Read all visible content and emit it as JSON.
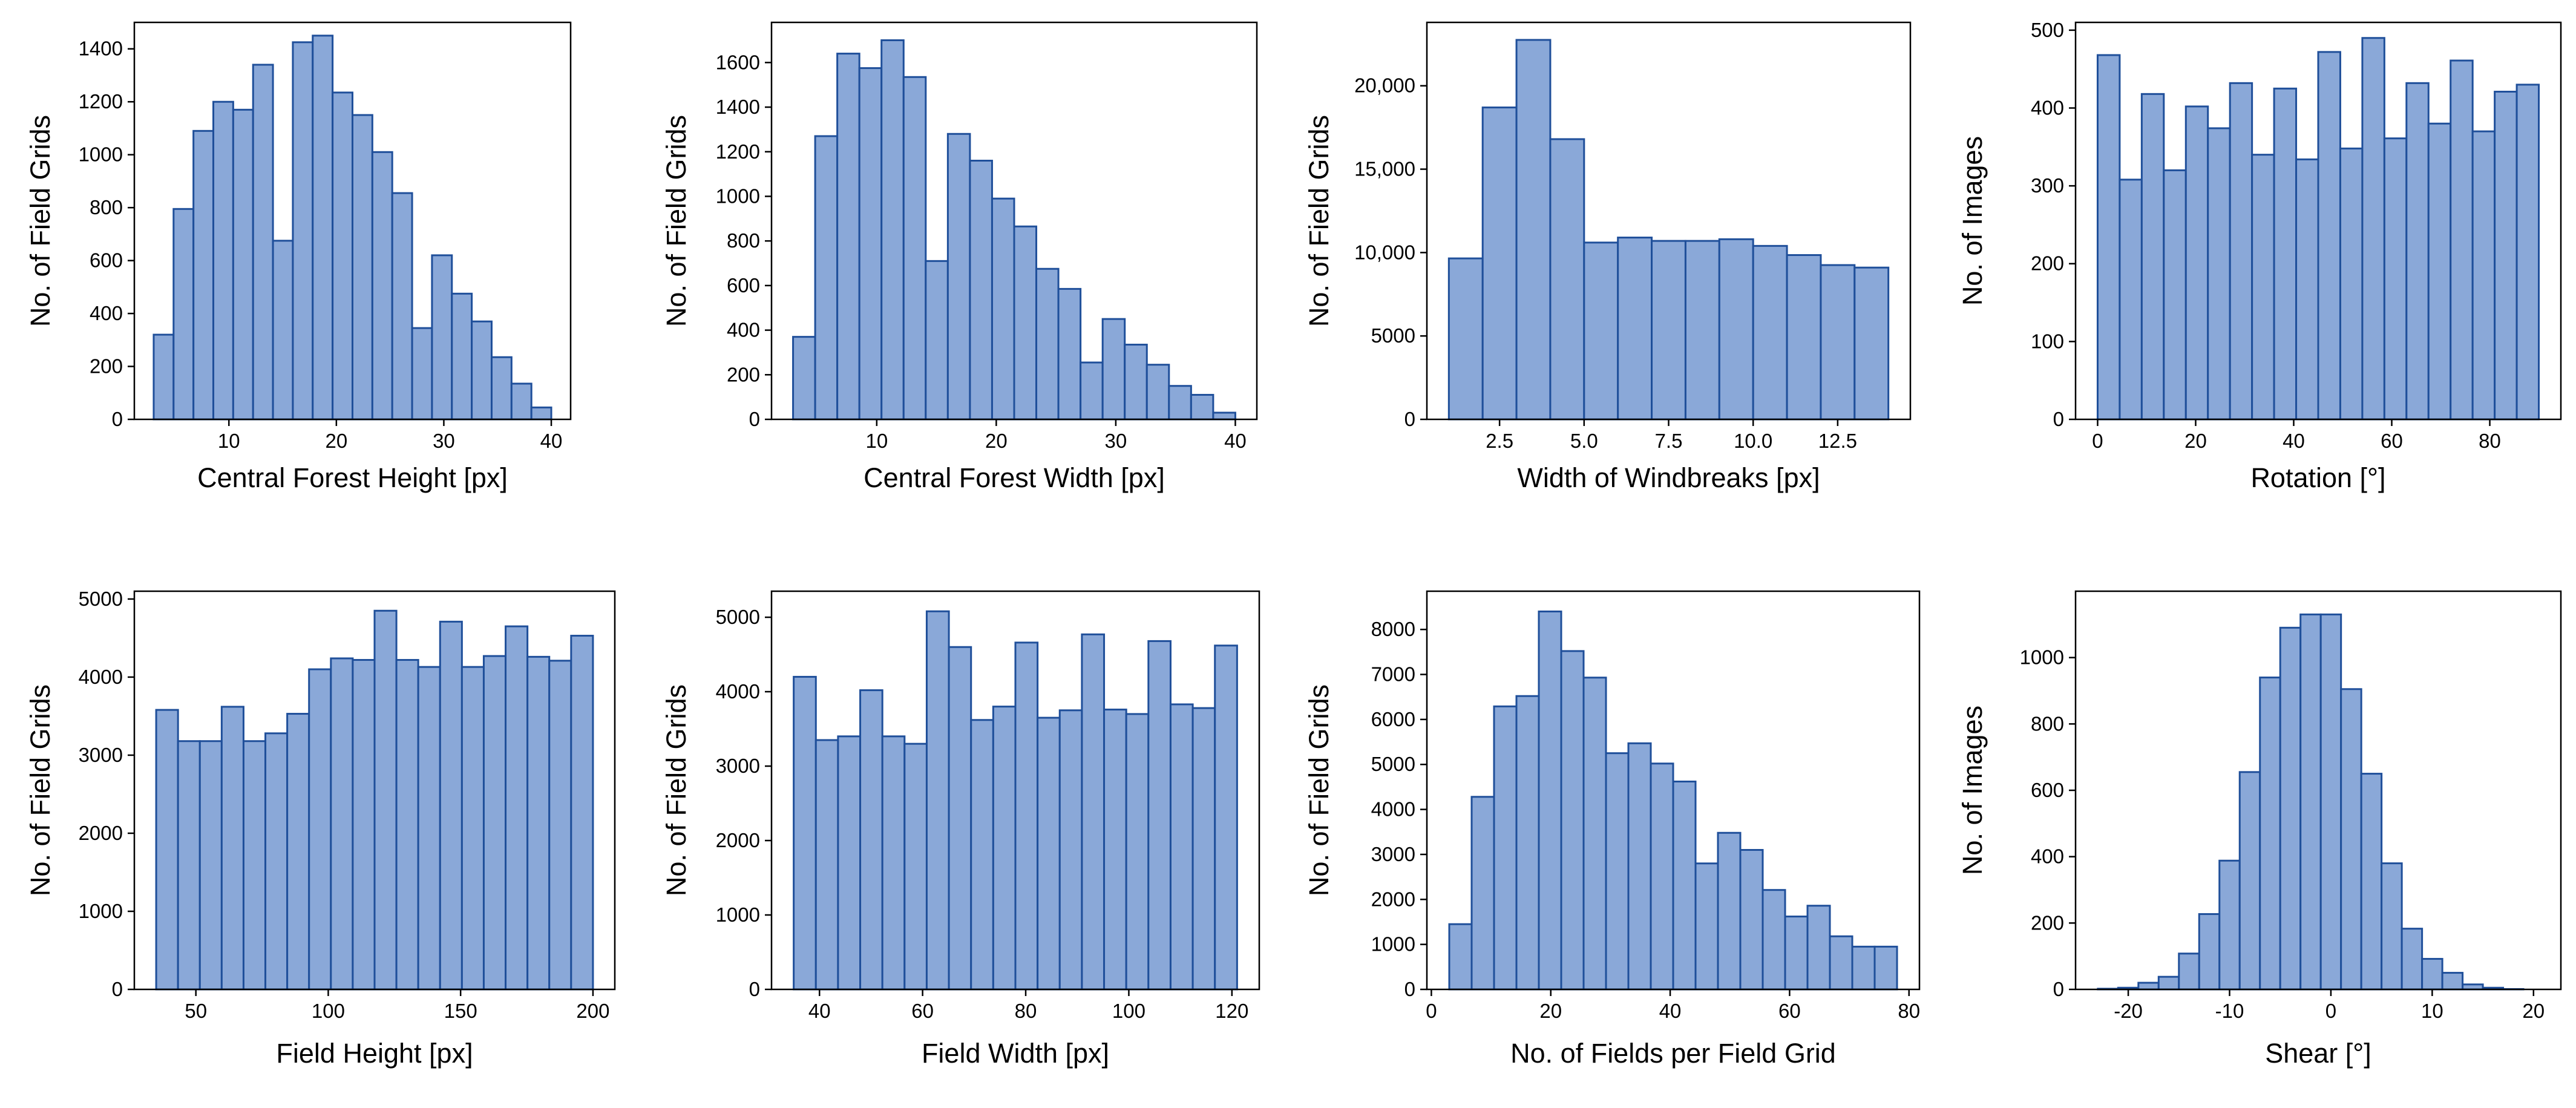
{
  "style": {
    "bar_fill": "#8aa8d8",
    "bar_edge": "#1f4f9a",
    "axis_color": "#000000",
    "background": "#ffffff"
  },
  "chart_data": [
    {
      "type": "bar",
      "xlabel": "Central Forest Height [px]",
      "ylabel": "No. of Field Grids",
      "xlim": [
        1.2,
        41.8
      ],
      "ylim": [
        0,
        1500
      ],
      "xticks": [
        10,
        20,
        30,
        40
      ],
      "yticks": [
        0,
        200,
        400,
        600,
        800,
        1000,
        1200,
        1400
      ],
      "bin_edges": [
        3,
        4.85,
        6.7,
        8.55,
        10.4,
        12.25,
        14.1,
        15.95,
        17.8,
        19.65,
        21.5,
        23.35,
        25.2,
        27.05,
        28.9,
        30.75,
        32.6,
        34.45,
        36.3,
        38.15,
        40
      ],
      "values": [
        320,
        795,
        1090,
        1200,
        1170,
        1340,
        675,
        1425,
        1450,
        1235,
        1150,
        1010,
        855,
        345,
        620,
        475,
        370,
        235,
        135,
        45
      ]
    },
    {
      "type": "bar",
      "xlabel": "Central Forest Width [px]",
      "ylabel": "No. of Field Grids",
      "xlim": [
        1.2,
        41.8
      ],
      "ylim": [
        0,
        1780
      ],
      "xticks": [
        10,
        20,
        30,
        40
      ],
      "yticks": [
        0,
        200,
        400,
        600,
        800,
        1000,
        1200,
        1400,
        1600
      ],
      "bin_edges": [
        3,
        4.85,
        6.7,
        8.55,
        10.4,
        12.25,
        14.1,
        15.95,
        17.8,
        19.65,
        21.5,
        23.35,
        25.2,
        27.05,
        28.9,
        30.75,
        32.6,
        34.45,
        36.3,
        38.15,
        40
      ],
      "values": [
        370,
        1270,
        1640,
        1575,
        1700,
        1535,
        710,
        1280,
        1160,
        990,
        865,
        675,
        585,
        255,
        450,
        335,
        245,
        150,
        110,
        30
      ]
    },
    {
      "type": "bar",
      "xlabel": "Width of Windbreaks [px]",
      "ylabel": "No. of Field Grids",
      "xlim": [
        0.35,
        14.65
      ],
      "ylim": [
        0,
        23800
      ],
      "xticks": [
        2.5,
        5.0,
        7.5,
        10.0,
        12.5
      ],
      "xtick_labels": [
        "2.5",
        "5.0",
        "7.5",
        "10.0",
        "12.5"
      ],
      "yticks": [
        0,
        5000,
        10000,
        15000,
        20000
      ],
      "ytick_labels": [
        "0",
        "5000",
        "10,000",
        "15,000",
        "20,000"
      ],
      "bin_edges": [
        1,
        2,
        3,
        4,
        5,
        6,
        7,
        8,
        9,
        10,
        11,
        12,
        13,
        14
      ],
      "values": [
        9650,
        18700,
        22750,
        16800,
        10600,
        10900,
        10700,
        10700,
        10800,
        10400,
        9850,
        9250,
        9100
      ]
    },
    {
      "type": "bar",
      "xlabel": "Rotation [°]",
      "ylabel": "No. of Images",
      "xlim": [
        -4.5,
        94.5
      ],
      "ylim": [
        0,
        510
      ],
      "xticks": [
        0,
        20,
        40,
        60,
        80
      ],
      "yticks": [
        0,
        100,
        200,
        300,
        400,
        500
      ],
      "bin_edges": [
        0,
        4.5,
        9,
        13.5,
        18,
        22.5,
        27,
        31.5,
        36,
        40.5,
        45,
        49.5,
        54,
        58.5,
        63,
        67.5,
        72,
        76.5,
        81,
        85.5,
        90
      ],
      "values": [
        468,
        308,
        418,
        320,
        402,
        374,
        432,
        340,
        425,
        334,
        472,
        348,
        490,
        361,
        432,
        380,
        461,
        370,
        421,
        430
      ]
    },
    {
      "type": "bar",
      "xlabel": "Field Height [px]",
      "ylabel": "No. of Field Grids",
      "xlim": [
        26.75,
        208.25
      ],
      "ylim": [
        0,
        5100
      ],
      "xticks": [
        50,
        100,
        150,
        200
      ],
      "yticks": [
        0,
        1000,
        2000,
        3000,
        4000,
        5000
      ],
      "bin_edges": [
        35,
        43.25,
        51.5,
        59.75,
        68,
        76.25,
        84.5,
        92.75,
        101,
        109.25,
        117.5,
        125.75,
        134,
        142.25,
        150.5,
        158.75,
        167,
        175.25,
        183.5,
        191.75,
        200
      ],
      "values": [
        3580,
        3180,
        3180,
        3620,
        3180,
        3280,
        3530,
        4100,
        4240,
        4220,
        4850,
        4220,
        4130,
        4710,
        4130,
        4270,
        4650,
        4260,
        4210,
        4530
      ]
    },
    {
      "type": "bar",
      "xlabel": "Field Width [px]",
      "ylabel": "No. of Field Grids",
      "xlim": [
        30.7,
        125.3
      ],
      "ylim": [
        0,
        5350
      ],
      "xticks": [
        40,
        60,
        80,
        100,
        120
      ],
      "yticks": [
        0,
        1000,
        2000,
        3000,
        4000,
        5000
      ],
      "bin_edges": [
        35,
        39.3,
        43.6,
        47.9,
        52.2,
        56.5,
        60.8,
        65.1,
        69.4,
        73.7,
        78,
        82.3,
        86.6,
        90.9,
        95.2,
        99.5,
        103.8,
        108.1,
        112.4,
        116.7,
        121
      ],
      "values": [
        4200,
        3350,
        3400,
        4020,
        3400,
        3300,
        5080,
        4600,
        3620,
        3800,
        4660,
        3650,
        3750,
        4770,
        3760,
        3700,
        4680,
        3830,
        3780,
        4620
      ]
    },
    {
      "type": "bar",
      "xlabel": "No. of Fields per Field Grid",
      "ylabel": "No. of Field Grids",
      "xlim": [
        -0.75,
        81.75
      ],
      "ylim": [
        0,
        8850
      ],
      "xticks": [
        0,
        20,
        40,
        60,
        80
      ],
      "yticks": [
        0,
        1000,
        2000,
        3000,
        4000,
        5000,
        6000,
        7000,
        8000
      ],
      "bin_edges": [
        3,
        6.75,
        10.5,
        14.25,
        18,
        21.75,
        25.5,
        29.25,
        33,
        36.75,
        40.5,
        44.25,
        48,
        51.75,
        55.5,
        59.25,
        63,
        66.75,
        70.5,
        74.25,
        78
      ],
      "values": [
        1450,
        4280,
        6290,
        6520,
        8400,
        7520,
        6930,
        5250,
        5470,
        5020,
        4620,
        2800,
        3480,
        3100,
        2210,
        1620,
        1860,
        1180,
        950,
        950
      ]
    },
    {
      "type": "bar",
      "xlabel": "Shear [°]",
      "ylabel": "No. of Images",
      "xlim": [
        -25.2,
        22.7
      ],
      "ylim": [
        0,
        1200
      ],
      "xticks": [
        -20,
        -10,
        0,
        10,
        20
      ],
      "yticks": [
        0,
        200,
        400,
        600,
        800,
        1000
      ],
      "bin_edges": [
        -23,
        -21,
        -19,
        -17,
        -15,
        -13,
        -11,
        -9,
        -7,
        -5,
        -3,
        -1,
        1,
        3,
        5,
        7,
        9,
        11,
        13,
        15,
        17,
        19,
        21
      ],
      "values": [
        2,
        5,
        20,
        38,
        108,
        227,
        388,
        655,
        940,
        1090,
        1130,
        1130,
        905,
        650,
        380,
        183,
        92,
        50,
        15,
        5,
        1,
        0
      ]
    }
  ]
}
